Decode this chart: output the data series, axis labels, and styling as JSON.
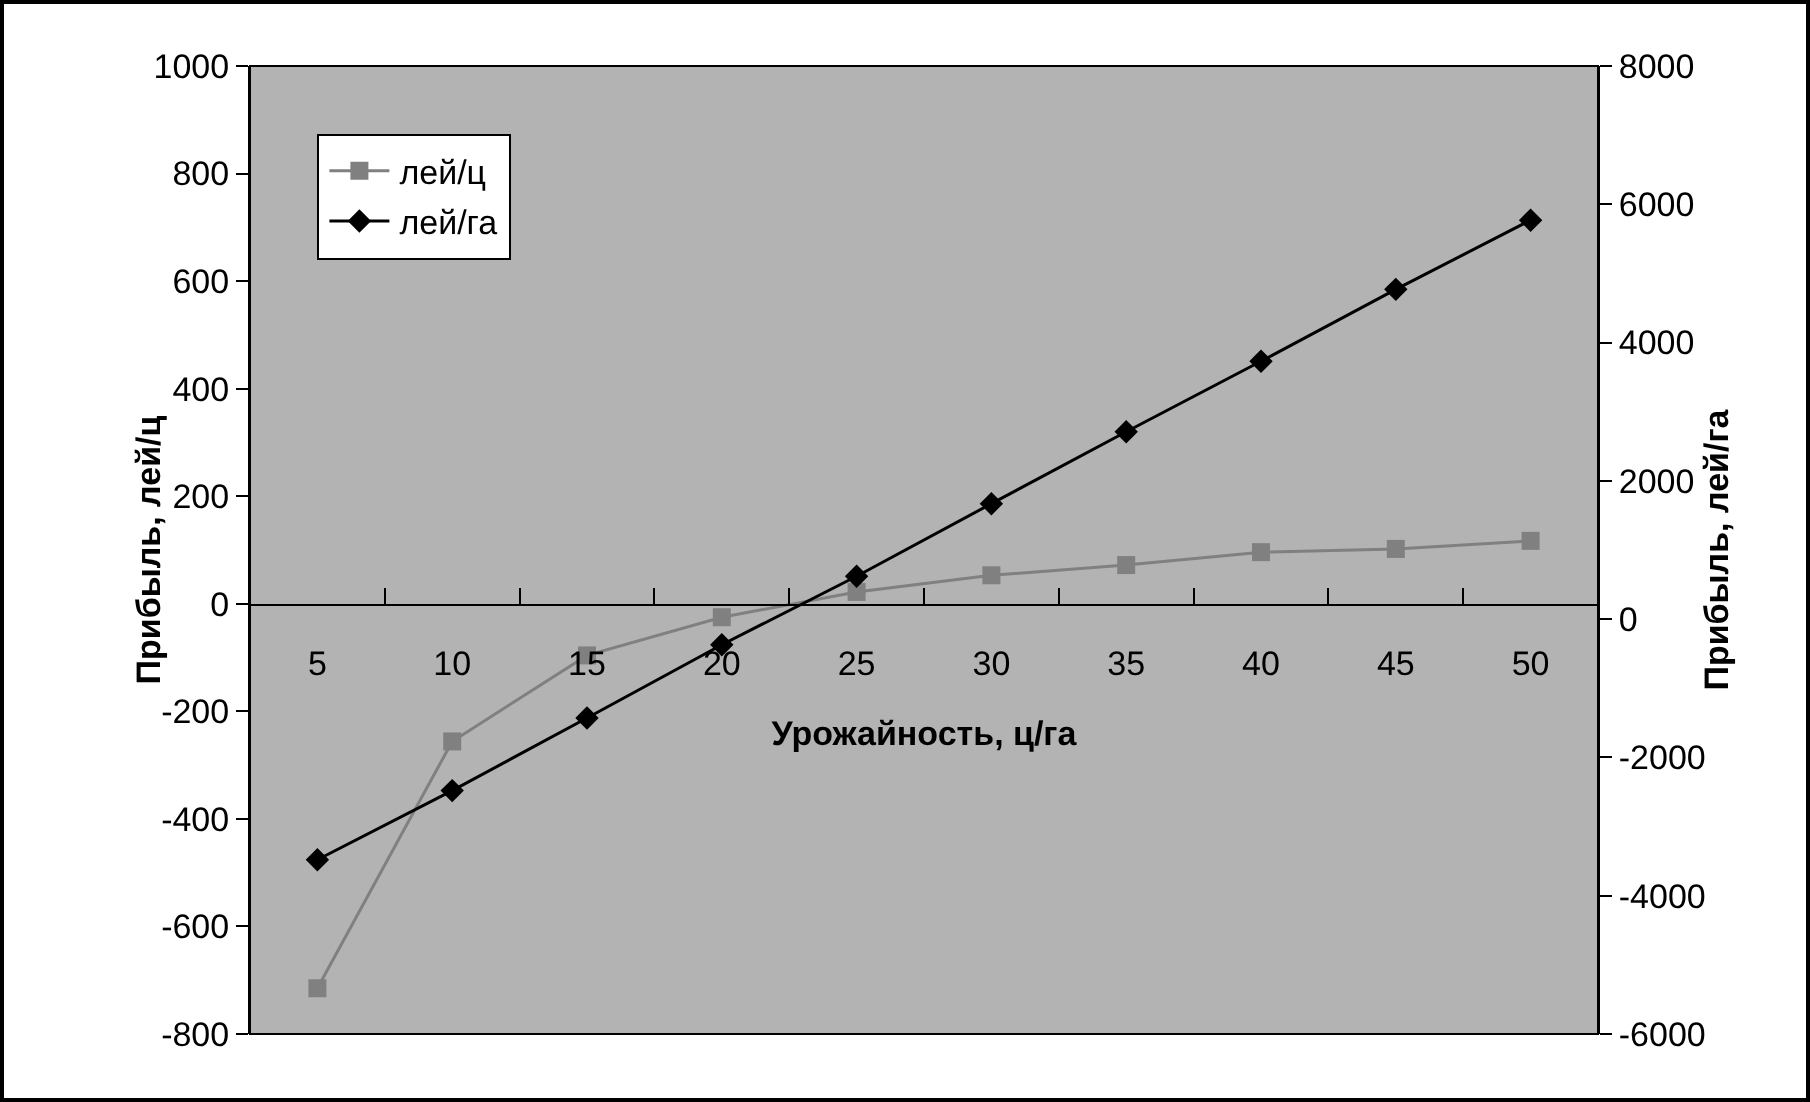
{
  "chart_data": {
    "type": "line",
    "xlabel": "Урожайность, ц/га",
    "ylabel": "Прибыль, лей/ц",
    "y2label": "Прибыль, лей/га",
    "categories": [
      "5",
      "10",
      "15",
      "20",
      "25",
      "30",
      "35",
      "40",
      "45",
      "50"
    ],
    "series": [
      {
        "name": "лей/ц",
        "color": "#808080",
        "marker": "square",
        "values": [
          -715,
          -256,
          -96,
          -25,
          22,
          53,
          72,
          96,
          102,
          117
        ]
      },
      {
        "name": "лей/га",
        "color": "#000000",
        "marker": "diamond",
        "axis": "y2",
        "values": [
          -3480,
          -2480,
          -1430,
          -370,
          620,
          1670,
          2710,
          3730,
          4770,
          5770
        ]
      }
    ],
    "ylim": [
      -800,
      1000
    ],
    "yticks": [
      -800,
      -600,
      -400,
      -200,
      0,
      200,
      400,
      600,
      800,
      1000
    ],
    "y2lim": [
      -6000,
      8000
    ],
    "y2ticks": [
      -6000,
      -4000,
      -2000,
      0,
      2000,
      4000,
      6000,
      8000
    ],
    "grid": false,
    "legend": "top left"
  }
}
